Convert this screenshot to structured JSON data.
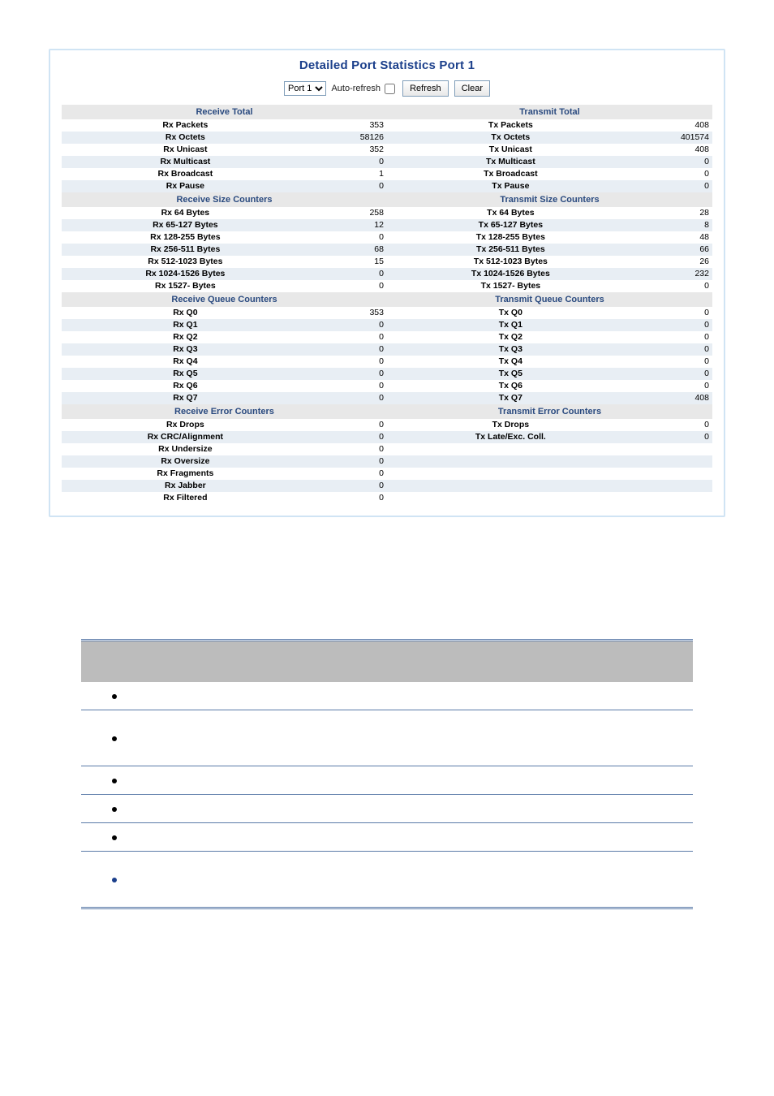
{
  "title": "Detailed Port Statistics  Port 1",
  "toolbar": {
    "port_select": "Port 1",
    "auto_refresh_label": "Auto-refresh",
    "refresh_btn": "Refresh",
    "clear_btn": "Clear"
  },
  "sections": {
    "receive_total": "Receive Total",
    "transmit_total": "Transmit Total",
    "receive_size": "Receive Size Counters",
    "transmit_size": "Transmit Size Counters",
    "receive_queue": "Receive Queue Counters",
    "transmit_queue": "Transmit Queue Counters",
    "receive_error": "Receive Error Counters",
    "transmit_error": "Transmit Error Counters"
  },
  "rows_total": [
    {
      "rl": "Rx Packets",
      "rv": "353",
      "tl": "Tx Packets",
      "tv": "408",
      "cls": "odd"
    },
    {
      "rl": "Rx Octets",
      "rv": "58126",
      "tl": "Tx Octets",
      "tv": "401574",
      "cls": "even"
    },
    {
      "rl": "Rx Unicast",
      "rv": "352",
      "tl": "Tx Unicast",
      "tv": "408",
      "cls": "odd"
    },
    {
      "rl": "Rx Multicast",
      "rv": "0",
      "tl": "Tx Multicast",
      "tv": "0",
      "cls": "even"
    },
    {
      "rl": "Rx Broadcast",
      "rv": "1",
      "tl": "Tx Broadcast",
      "tv": "0",
      "cls": "odd"
    },
    {
      "rl": "Rx Pause",
      "rv": "0",
      "tl": "Tx Pause",
      "tv": "0",
      "cls": "even"
    }
  ],
  "rows_size": [
    {
      "rl": "Rx 64 Bytes",
      "rv": "258",
      "tl": "Tx 64 Bytes",
      "tv": "28",
      "cls": "odd"
    },
    {
      "rl": "Rx 65-127 Bytes",
      "rv": "12",
      "tl": "Tx 65-127 Bytes",
      "tv": "8",
      "cls": "even"
    },
    {
      "rl": "Rx 128-255 Bytes",
      "rv": "0",
      "tl": "Tx 128-255 Bytes",
      "tv": "48",
      "cls": "odd"
    },
    {
      "rl": "Rx 256-511 Bytes",
      "rv": "68",
      "tl": "Tx 256-511 Bytes",
      "tv": "66",
      "cls": "even"
    },
    {
      "rl": "Rx 512-1023 Bytes",
      "rv": "15",
      "tl": "Tx 512-1023 Bytes",
      "tv": "26",
      "cls": "odd"
    },
    {
      "rl": "Rx 1024-1526 Bytes",
      "rv": "0",
      "tl": "Tx 1024-1526 Bytes",
      "tv": "232",
      "cls": "even"
    },
    {
      "rl": "Rx 1527- Bytes",
      "rv": "0",
      "tl": "Tx 1527- Bytes",
      "tv": "0",
      "cls": "odd"
    }
  ],
  "rows_queue": [
    {
      "rl": "Rx Q0",
      "rv": "353",
      "tl": "Tx Q0",
      "tv": "0",
      "cls": "odd"
    },
    {
      "rl": "Rx Q1",
      "rv": "0",
      "tl": "Tx Q1",
      "tv": "0",
      "cls": "even"
    },
    {
      "rl": "Rx Q2",
      "rv": "0",
      "tl": "Tx Q2",
      "tv": "0",
      "cls": "odd"
    },
    {
      "rl": "Rx Q3",
      "rv": "0",
      "tl": "Tx Q3",
      "tv": "0",
      "cls": "even"
    },
    {
      "rl": "Rx Q4",
      "rv": "0",
      "tl": "Tx Q4",
      "tv": "0",
      "cls": "odd"
    },
    {
      "rl": "Rx Q5",
      "rv": "0",
      "tl": "Tx Q5",
      "tv": "0",
      "cls": "even"
    },
    {
      "rl": "Rx Q6",
      "rv": "0",
      "tl": "Tx Q6",
      "tv": "0",
      "cls": "odd"
    },
    {
      "rl": "Rx Q7",
      "rv": "0",
      "tl": "Tx Q7",
      "tv": "408",
      "cls": "even"
    }
  ],
  "rows_error": [
    {
      "rl": "Rx Drops",
      "rv": "0",
      "tl": "Tx Drops",
      "tv": "0",
      "cls": "odd"
    },
    {
      "rl": "Rx CRC/Alignment",
      "rv": "0",
      "tl": "Tx Late/Exc. Coll.",
      "tv": "0",
      "cls": "even"
    },
    {
      "rl": "Rx Undersize",
      "rv": "0",
      "tl": "",
      "tv": "",
      "cls": "odd"
    },
    {
      "rl": "Rx Oversize",
      "rv": "0",
      "tl": "",
      "tv": "",
      "cls": "even"
    },
    {
      "rl": "Rx Fragments",
      "rv": "0",
      "tl": "",
      "tv": "",
      "cls": "odd"
    },
    {
      "rl": "Rx Jabber",
      "rv": "0",
      "tl": "",
      "tv": "",
      "cls": "even"
    },
    {
      "rl": "Rx Filtered",
      "rv": "0",
      "tl": "",
      "tv": "",
      "cls": "odd"
    }
  ],
  "desc_rows": [
    {
      "blue": false,
      "tall": false
    },
    {
      "blue": false,
      "tall": true
    },
    {
      "blue": false,
      "tall": false
    },
    {
      "blue": false,
      "tall": false
    },
    {
      "blue": false,
      "tall": false
    },
    {
      "blue": true,
      "tall": true
    }
  ]
}
